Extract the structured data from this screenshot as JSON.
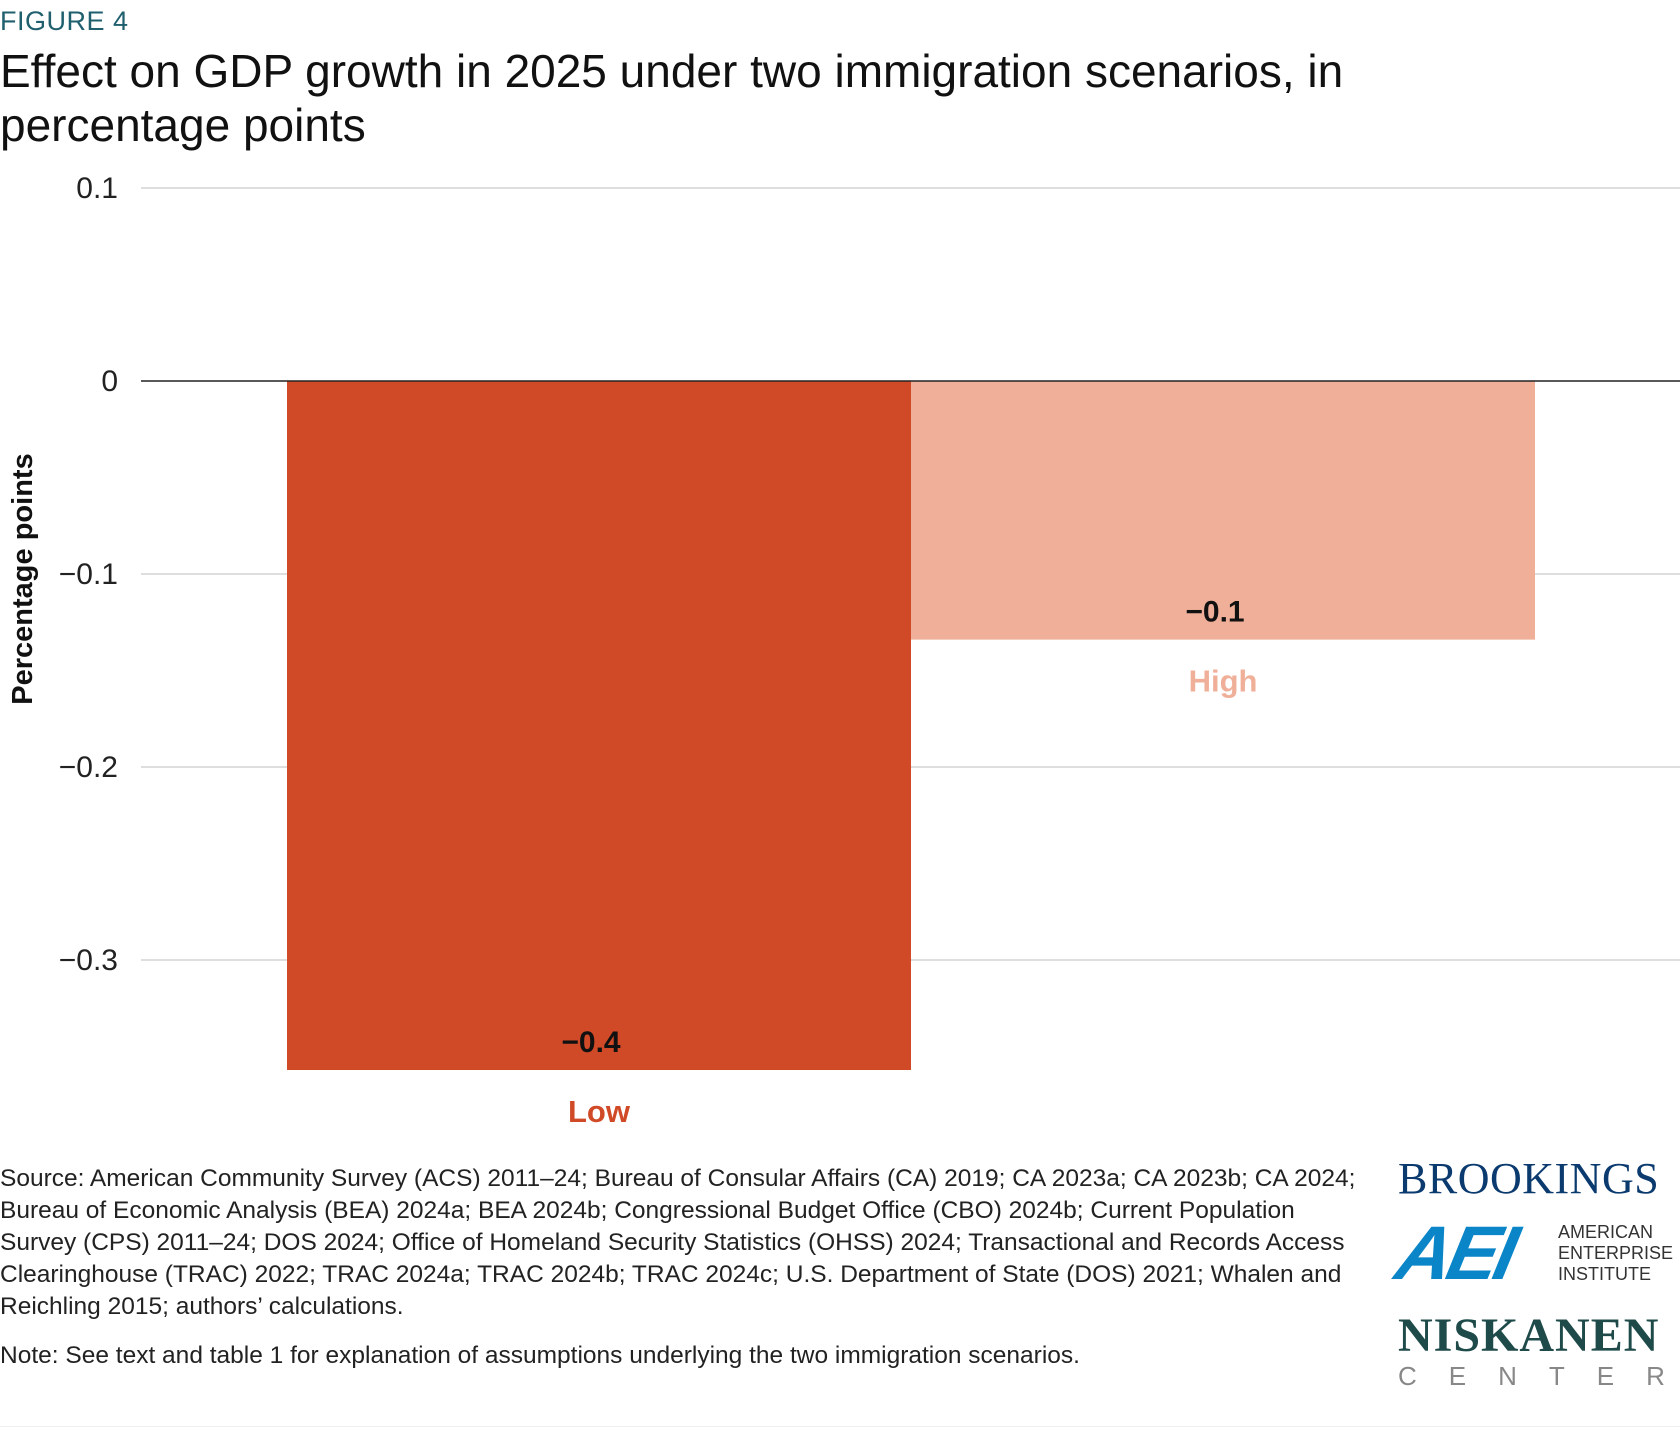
{
  "figure_label": "FIGURE 4",
  "title": "Effect on GDP growth in 2025 under two immigration scenarios, in percentage points",
  "chart_data": {
    "type": "bar",
    "title": "Effect on GDP growth in 2025 under two immigration scenarios, in percentage points",
    "xlabel": "",
    "ylabel": "Percentage points",
    "categories": [
      "Low",
      "High"
    ],
    "values": [
      -0.357,
      -0.134
    ],
    "data_labels": [
      "-0.4",
      "-0.1"
    ],
    "colors": [
      "#d04a28",
      "#f0af98"
    ],
    "yticks": [
      0.1,
      0,
      -0.1,
      -0.2,
      -0.3
    ],
    "ytick_labels": [
      "0.1",
      "0",
      "-0.1",
      "-0.2",
      "-0.3"
    ],
    "ylim": [
      -0.36,
      0.1
    ],
    "grid": true,
    "legend": "none"
  },
  "source": "Source: American Community Survey (ACS) 2011–24; Bureau of Consular Affairs (CA) 2019; CA 2023a; CA 2023b; CA 2024; Bureau of Economic Analysis (BEA) 2024a; BEA 2024b; Congressional Budget Office (CBO) 2024b; Current Population Survey (CPS) 2011–24; DOS 2024; Office of Homeland Security Statistics (OHSS) 2024; Transactional and Records Access Clearinghouse (TRAC) 2022; TRAC 2024a; TRAC 2024b; TRAC 2024c; U.S. Department of State (DOS) 2021; Whalen and Reichling 2015; authors’ calculations.",
  "note": "Note: See text and table 1 for explanation of assumptions underlying the two immigration scenarios.",
  "logos": {
    "brookings": "BROOKINGS",
    "aei_mark": "AEI",
    "aei_text": [
      "AMERICAN",
      "ENTERPRISE",
      "INSTITUTE"
    ],
    "niskanen": "NISKANEN",
    "niskanen_sub": "CENTER"
  }
}
